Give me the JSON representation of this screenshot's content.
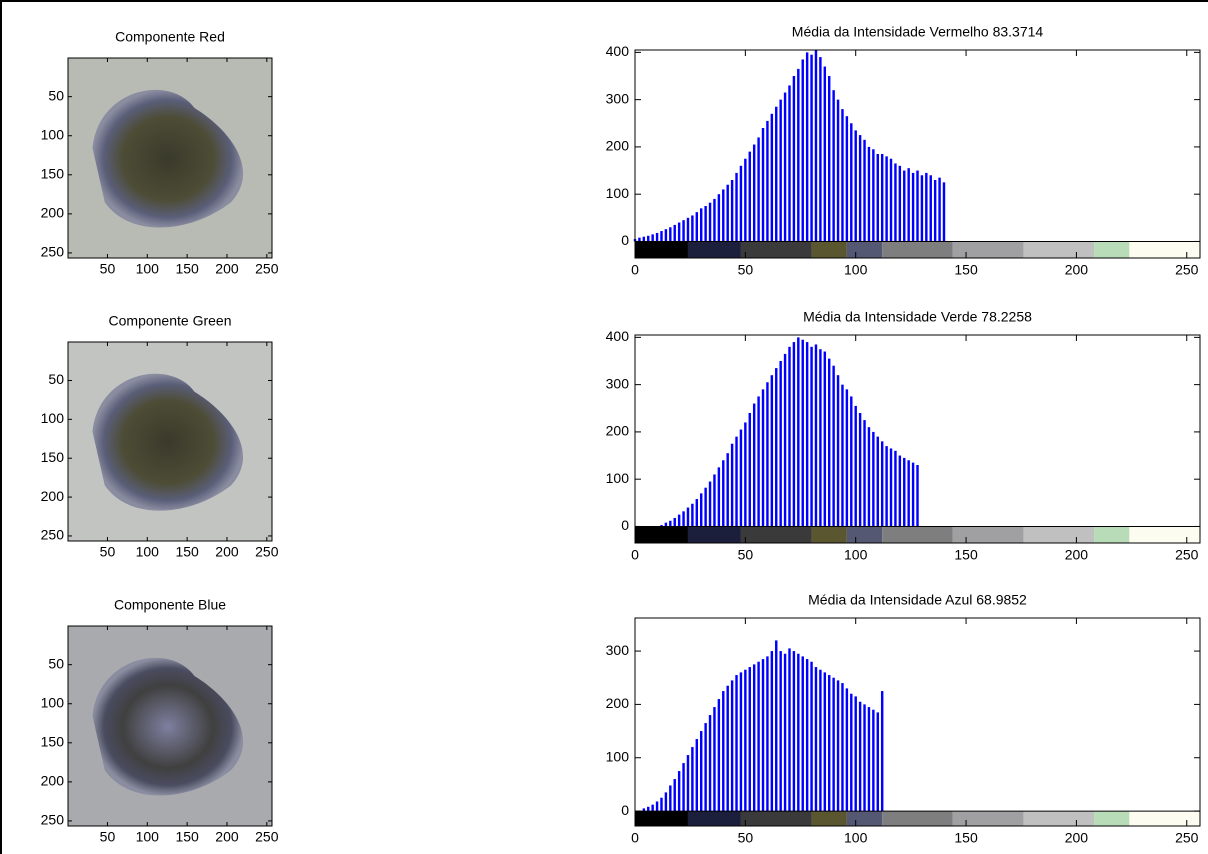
{
  "chart_data": [
    {
      "type": "image",
      "title": "Componente Red",
      "xlim": [
        0.5,
        256.5
      ],
      "ylim": [
        0.5,
        256.5
      ],
      "y_reversed": true,
      "xticks": [
        50,
        100,
        150,
        200,
        250
      ],
      "yticks": [
        50,
        100,
        150,
        200,
        250
      ]
    },
    {
      "type": "bar",
      "title": "Média da Intensidade Vermelho 83.3714",
      "color": "#0000ff",
      "xlim": [
        0,
        256
      ],
      "ylim": [
        -35,
        405
      ],
      "xticks": [
        0,
        50,
        100,
        150,
        200,
        250
      ],
      "yticks": [
        0,
        100,
        200,
        300,
        400
      ],
      "x": [
        0,
        2,
        4,
        6,
        8,
        10,
        12,
        14,
        16,
        18,
        20,
        22,
        24,
        26,
        28,
        30,
        32,
        34,
        36,
        38,
        40,
        42,
        44,
        46,
        48,
        50,
        52,
        54,
        56,
        58,
        60,
        62,
        64,
        66,
        68,
        70,
        72,
        74,
        76,
        78,
        80,
        82,
        84,
        86,
        88,
        90,
        92,
        94,
        96,
        98,
        100,
        102,
        104,
        106,
        108,
        110,
        112,
        114,
        116,
        118,
        120,
        122,
        124,
        126,
        128,
        130,
        132,
        134,
        136,
        138,
        140
      ],
      "values": [
        5,
        8,
        10,
        12,
        15,
        18,
        22,
        26,
        30,
        35,
        40,
        45,
        50,
        55,
        62,
        70,
        75,
        82,
        90,
        100,
        110,
        120,
        130,
        145,
        160,
        175,
        190,
        205,
        220,
        240,
        255,
        270,
        285,
        300,
        315,
        330,
        350,
        365,
        385,
        400,
        395,
        405,
        390,
        370,
        350,
        320,
        300,
        280,
        265,
        250,
        235,
        225,
        215,
        200,
        195,
        185,
        185,
        180,
        175,
        165,
        160,
        150,
        155,
        145,
        150,
        140,
        145,
        140,
        130,
        135,
        125
      ],
      "colorbar": {
        "edges": [
          0,
          24,
          48,
          80,
          96,
          112,
          144,
          176,
          208,
          224,
          256
        ],
        "colors": [
          "#000000",
          "#1c1f3c",
          "#3a3a3a",
          "#5a5630",
          "#545873",
          "#7e7e7e",
          "#a0a0a2",
          "#c0c0c0",
          "#b8dcb8",
          "#fcfcf0"
        ]
      }
    },
    {
      "type": "image",
      "title": "Componente Green",
      "xlim": [
        0.5,
        256.5
      ],
      "ylim": [
        0.5,
        256.5
      ],
      "y_reversed": true,
      "xticks": [
        50,
        100,
        150,
        200,
        250
      ],
      "yticks": [
        50,
        100,
        150,
        200,
        250
      ]
    },
    {
      "type": "bar",
      "title": "Média da Intensidade Verde 78.2258",
      "color": "#0000ff",
      "xlim": [
        0,
        256
      ],
      "ylim": [
        -35,
        405
      ],
      "xticks": [
        0,
        50,
        100,
        150,
        200,
        250
      ],
      "yticks": [
        0,
        100,
        200,
        300,
        400
      ],
      "x": [
        0,
        2,
        4,
        6,
        8,
        10,
        12,
        14,
        16,
        18,
        20,
        22,
        24,
        26,
        28,
        30,
        32,
        34,
        36,
        38,
        40,
        42,
        44,
        46,
        48,
        50,
        52,
        54,
        56,
        58,
        60,
        62,
        64,
        66,
        68,
        70,
        72,
        74,
        76,
        78,
        80,
        82,
        84,
        86,
        88,
        90,
        92,
        94,
        96,
        98,
        100,
        102,
        104,
        106,
        108,
        110,
        112,
        114,
        116,
        118,
        120,
        122,
        124,
        126,
        128
      ],
      "values": [
        0,
        0,
        0,
        0,
        0,
        0,
        3,
        8,
        12,
        18,
        25,
        32,
        40,
        48,
        58,
        70,
        82,
        95,
        110,
        125,
        140,
        155,
        175,
        190,
        205,
        220,
        240,
        260,
        275,
        290,
        305,
        320,
        335,
        350,
        365,
        380,
        390,
        400,
        395,
        390,
        380,
        385,
        375,
        370,
        355,
        340,
        320,
        300,
        290,
        275,
        255,
        240,
        225,
        210,
        200,
        190,
        180,
        170,
        165,
        160,
        150,
        145,
        140,
        135,
        130
      ],
      "colorbar": {
        "edges": [
          0,
          24,
          48,
          80,
          96,
          112,
          144,
          176,
          208,
          224,
          256
        ],
        "colors": [
          "#000000",
          "#1c1f3c",
          "#3a3a3a",
          "#5a5630",
          "#545873",
          "#7e7e7e",
          "#a0a0a2",
          "#c0c0c0",
          "#b8dcb8",
          "#fcfcf0"
        ]
      }
    },
    {
      "type": "image",
      "title": "Componente Blue",
      "xlim": [
        0.5,
        256.5
      ],
      "ylim": [
        0.5,
        256.5
      ],
      "y_reversed": true,
      "xticks": [
        50,
        100,
        150,
        200,
        250
      ],
      "yticks": [
        50,
        100,
        150,
        200,
        250
      ]
    },
    {
      "type": "bar",
      "title": "Média da Intensidade Azul 68.9852",
      "color": "#0000ff",
      "xlim": [
        0,
        256
      ],
      "ylim": [
        -28,
        362
      ],
      "xticks": [
        0,
        50,
        100,
        150,
        200,
        250
      ],
      "yticks": [
        0,
        100,
        200,
        300
      ],
      "x": [
        0,
        2,
        4,
        6,
        8,
        10,
        12,
        14,
        16,
        18,
        20,
        22,
        24,
        26,
        28,
        30,
        32,
        34,
        36,
        38,
        40,
        42,
        44,
        46,
        48,
        50,
        52,
        54,
        56,
        58,
        60,
        62,
        64,
        66,
        68,
        70,
        72,
        74,
        76,
        78,
        80,
        82,
        84,
        86,
        88,
        90,
        92,
        94,
        96,
        98,
        100,
        102,
        104,
        106,
        108,
        110,
        112
      ],
      "values": [
        0,
        0,
        5,
        8,
        12,
        18,
        25,
        35,
        48,
        60,
        75,
        90,
        105,
        120,
        135,
        150,
        165,
        180,
        195,
        210,
        225,
        235,
        245,
        255,
        260,
        265,
        270,
        275,
        280,
        285,
        290,
        300,
        320,
        300,
        295,
        305,
        300,
        295,
        290,
        285,
        280,
        270,
        265,
        260,
        255,
        250,
        245,
        240,
        230,
        220,
        215,
        205,
        200,
        195,
        190,
        185,
        225
      ],
      "colorbar": {
        "edges": [
          0,
          24,
          48,
          80,
          96,
          112,
          144,
          176,
          208,
          224,
          256
        ],
        "colors": [
          "#000000",
          "#1c1f3c",
          "#3a3a3a",
          "#5a5630",
          "#545873",
          "#7e7e7e",
          "#a0a0a2",
          "#c0c0c0",
          "#b8dcb8",
          "#fcfcf0"
        ]
      }
    }
  ]
}
